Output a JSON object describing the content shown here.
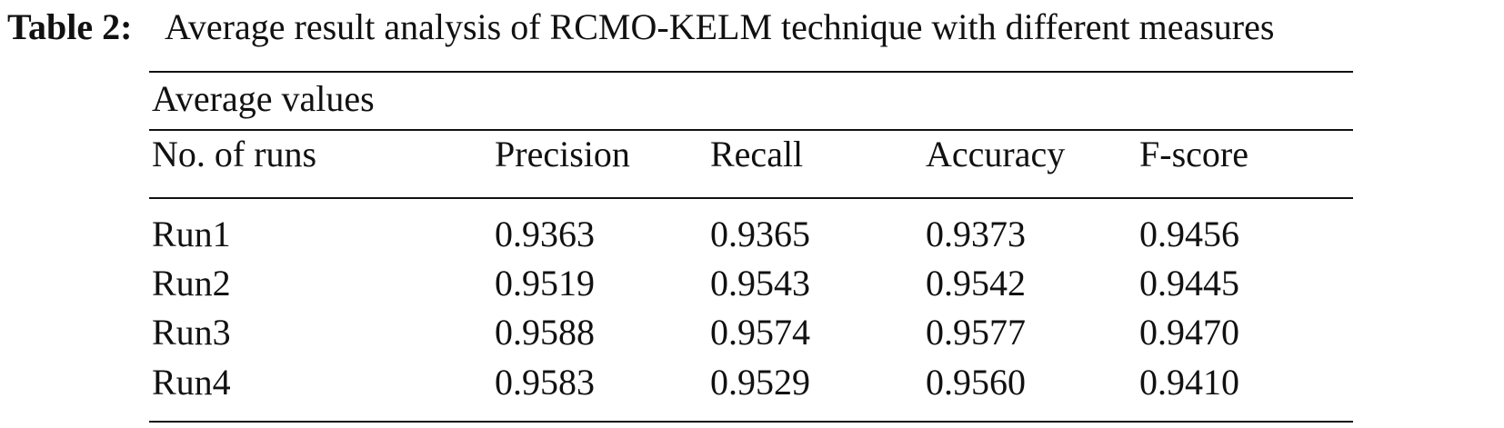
{
  "caption": {
    "label": "Table 2:",
    "title": "Average result analysis of RCMO-KELM technique with different measures"
  },
  "table": {
    "group_header": "Average values",
    "columns": [
      "No. of runs",
      "Precision",
      "Recall",
      "Accuracy",
      "F-score"
    ],
    "rows": [
      [
        "Run1",
        "0.9363",
        "0.9365",
        "0.9373",
        "0.9456"
      ],
      [
        "Run2",
        "0.9519",
        "0.9543",
        "0.9542",
        "0.9445"
      ],
      [
        "Run3",
        "0.9588",
        "0.9574",
        "0.9577",
        "0.9470"
      ],
      [
        "Run4",
        "0.9583",
        "0.9529",
        "0.9560",
        "0.9410"
      ]
    ]
  }
}
